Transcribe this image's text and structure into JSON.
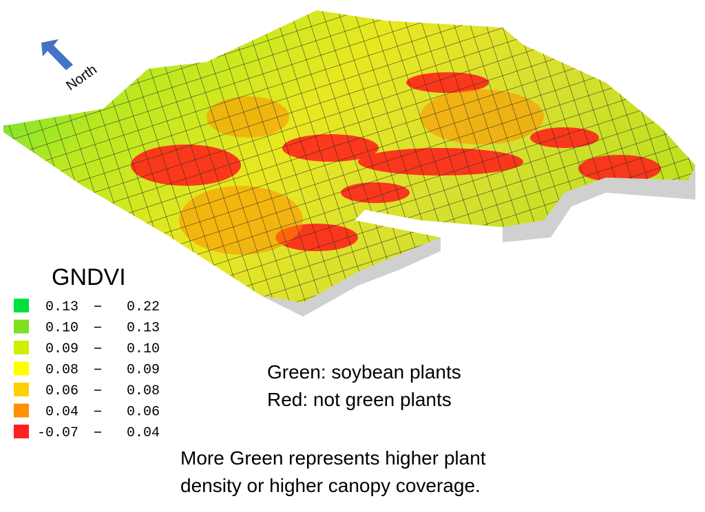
{
  "north_label": "North",
  "legend": {
    "title": "GNDVI",
    "items": [
      {
        "color": "#00e040",
        "low": "0.13",
        "high": "0.22"
      },
      {
        "color": "#80e020",
        "low": "0.10",
        "high": "0.13"
      },
      {
        "color": "#d0f000",
        "low": "0.09",
        "high": "0.10"
      },
      {
        "color": "#ffff00",
        "low": "0.08",
        "high": "0.09"
      },
      {
        "color": "#ffd000",
        "low": "0.06",
        "high": "0.08"
      },
      {
        "color": "#ff9000",
        "low": "0.04",
        "high": "0.06"
      },
      {
        "color": "#ff2020",
        "low": "-0.07",
        "high": "0.04"
      }
    ]
  },
  "notes": [
    "Green: soybean plants",
    "Red: not green plants"
  ],
  "caption": [
    "More Green represents higher plant",
    "density or higher canopy coverage."
  ]
}
